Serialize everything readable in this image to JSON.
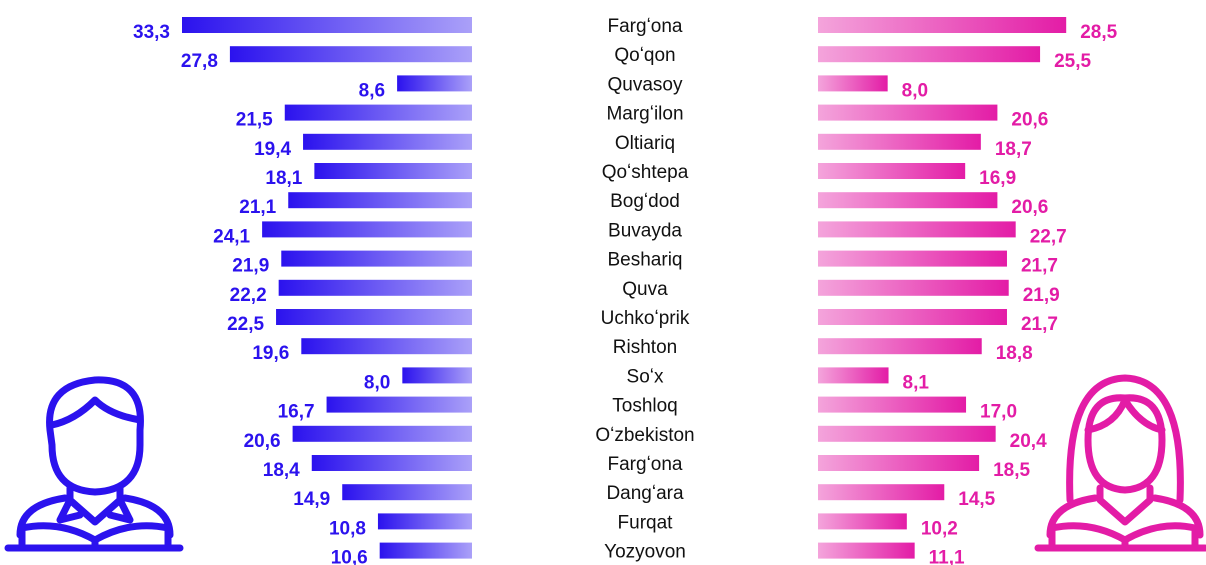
{
  "chart_data": {
    "type": "butterfly",
    "categories": [
      "Fargʻona",
      "Qoʻqon",
      "Quvasoy",
      "Margʻilon",
      "Oltiariq",
      "Qoʻshtepa",
      "Bogʻdod",
      "Buvayda",
      "Beshariq",
      "Quva",
      "Uchkoʻprik",
      "Rishton",
      "Soʻx",
      "Toshloq",
      "Oʻzbekiston",
      "Fargʻona",
      "Dangʻara",
      "Furqat",
      "Yozyovon"
    ],
    "series": [
      {
        "color": "#2b12ee",
        "values": [
          33.3,
          27.8,
          8.6,
          21.5,
          19.4,
          18.1,
          21.1,
          24.1,
          21.9,
          22.2,
          22.5,
          19.6,
          8.0,
          16.7,
          20.6,
          18.4,
          14.9,
          10.8,
          10.6
        ],
        "value_labels": [
          "33,3",
          "27,8",
          "8,6",
          "21,5",
          "19,4",
          "18,1",
          "21,1",
          "24,1",
          "21,9",
          "22,2",
          "22,5",
          "19,6",
          "8,0",
          "16,7",
          "20,6",
          "18,4",
          "14,9",
          "10,8",
          "10,6"
        ]
      },
      {
        "color": "#e31ca6",
        "values": [
          28.5,
          25.5,
          8.0,
          20.6,
          18.7,
          16.9,
          20.6,
          22.7,
          21.7,
          21.9,
          21.7,
          18.8,
          8.1,
          17.0,
          20.4,
          18.5,
          14.5,
          10.2,
          11.1
        ],
        "value_labels": [
          "28,5",
          "25,5",
          "8,0",
          "20,6",
          "18,7",
          "16,9",
          "20,6",
          "22,7",
          "21,7",
          "21,9",
          "21,7",
          "18,8",
          "8,1",
          "17,0",
          "20,4",
          "18,5",
          "14,5",
          "10,2",
          "11,1"
        ]
      }
    ]
  }
}
